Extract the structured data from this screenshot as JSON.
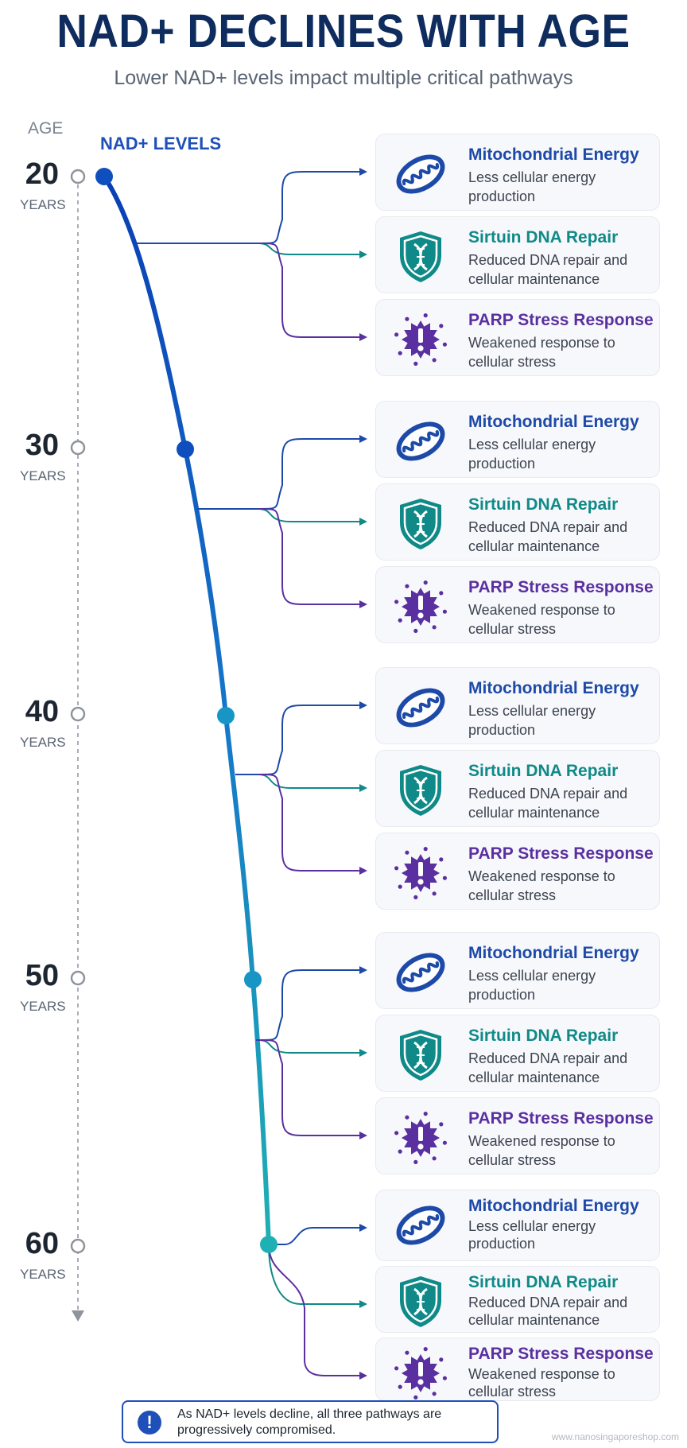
{
  "title": "NAD+ DECLINES WITH AGE",
  "subtitle": "Lower NAD+ levels impact multiple critical pathways",
  "age_header": "AGE",
  "nad_header": "NAD+ LEVELS",
  "age_unit": "YEARS",
  "ages": [
    "20",
    "30",
    "40",
    "50",
    "60"
  ],
  "pathways": [
    {
      "key": "mito",
      "title": "Mitochondrial Energy",
      "desc": "Less cellular energy production",
      "icon": "mitochondria-icon",
      "color": "#1d4aa8"
    },
    {
      "key": "sirt",
      "title": "Sirtuin DNA Repair",
      "desc": "Reduced DNA repair and cellular maintenance",
      "icon": "dna-shield-icon",
      "color": "#0f8a88"
    },
    {
      "key": "parp",
      "title": "PARP Stress Response",
      "desc": "Weakened response to cellular stress",
      "icon": "stress-burst-icon",
      "color": "#5a2fa0"
    }
  ],
  "colors": {
    "curve_top": "#0a3fb5",
    "curve_bottom": "#1fb0b3",
    "age_line": "#a9adb5"
  },
  "note": "As NAD+ levels decline, all three pathways are progressively compromised.",
  "watermark": "www.nanosingaporeshop.com"
}
